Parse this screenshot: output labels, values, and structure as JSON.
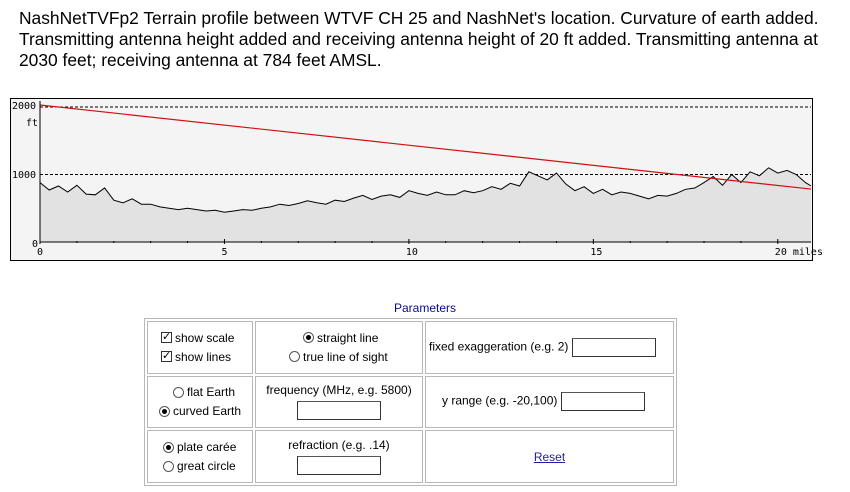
{
  "caption": "NashNetTVFp2  Terrain profile between WTVF CH 25 and NashNet's location. Curvature of earth added. Transmitting antenna height added and receiving antenna height of 20 ft added. Transmitting antenna at 2030 feet; receiving antenna at 784 feet AMSL.",
  "profile": {
    "y_labels": {
      "top": "2000",
      "unit": "ft",
      "mid": "1000",
      "zero": "0"
    },
    "x_labels": [
      "0",
      "5",
      "10",
      "15",
      "20 miles"
    ],
    "colors": {
      "terrain_fill": "#e2e2e2",
      "terrain_line": "#000000",
      "sight_line": "#d01010",
      "background": "#f4f4f4"
    }
  },
  "chart_data": {
    "type": "area",
    "x_unit": "miles",
    "y_unit": "ft",
    "xlim": [
      0,
      20.9
    ],
    "ylim": [
      0,
      2030
    ],
    "grid_lines_y": [
      1000,
      2000
    ],
    "line_of_sight": {
      "x": [
        0,
        20.9
      ],
      "y": [
        2030,
        784
      ]
    },
    "terrain": {
      "x": [
        0,
        0.25,
        0.5,
        0.75,
        1.0,
        1.25,
        1.5,
        1.75,
        2.0,
        2.25,
        2.5,
        2.75,
        3.0,
        3.25,
        3.5,
        3.75,
        4.0,
        4.25,
        4.5,
        4.75,
        5.0,
        5.25,
        5.5,
        5.75,
        6.0,
        6.25,
        6.5,
        6.75,
        7.0,
        7.25,
        7.5,
        7.75,
        8.0,
        8.25,
        8.5,
        8.75,
        9.0,
        9.25,
        9.5,
        9.75,
        10.0,
        10.25,
        10.5,
        10.75,
        11.0,
        11.25,
        11.5,
        11.75,
        12.0,
        12.25,
        12.5,
        12.75,
        13.0,
        13.25,
        13.5,
        13.75,
        14.0,
        14.25,
        14.5,
        14.75,
        15.0,
        15.25,
        15.5,
        15.75,
        16.0,
        16.25,
        16.5,
        16.75,
        17.0,
        17.25,
        17.5,
        17.75,
        18.0,
        18.25,
        18.5,
        18.75,
        19.0,
        19.25,
        19.5,
        19.75,
        20.0,
        20.25,
        20.5,
        20.75,
        20.9
      ],
      "y": [
        880,
        770,
        830,
        740,
        840,
        710,
        700,
        800,
        620,
        580,
        640,
        560,
        560,
        520,
        500,
        480,
        500,
        480,
        460,
        470,
        440,
        460,
        480,
        470,
        500,
        520,
        560,
        540,
        570,
        610,
        580,
        560,
        620,
        600,
        650,
        690,
        630,
        680,
        700,
        660,
        760,
        720,
        690,
        740,
        700,
        700,
        760,
        730,
        760,
        820,
        780,
        870,
        830,
        1040,
        980,
        920,
        1020,
        860,
        760,
        820,
        720,
        780,
        700,
        740,
        720,
        680,
        640,
        690,
        680,
        720,
        780,
        800,
        880,
        970,
        840,
        1000,
        880,
        1040,
        980,
        1100,
        1020,
        1060,
        1000,
        880,
        830
      ]
    }
  },
  "params": {
    "title": "Parameters",
    "show_scale": "show scale",
    "show_lines": "show lines",
    "straight_line": "straight line",
    "true_line_of_sight": "true line of sight",
    "fixed_exaggeration": "fixed exaggeration (e.g. 2)",
    "flat_earth": "flat Earth",
    "curved_earth": "curved Earth",
    "frequency": "frequency (MHz, e.g. 5800)",
    "y_range": "y range (e.g. -20,100)",
    "plate_caree": "plate carée",
    "great_circle": "great circle",
    "refraction": "refraction (e.g. .14)",
    "reset": "Reset"
  }
}
